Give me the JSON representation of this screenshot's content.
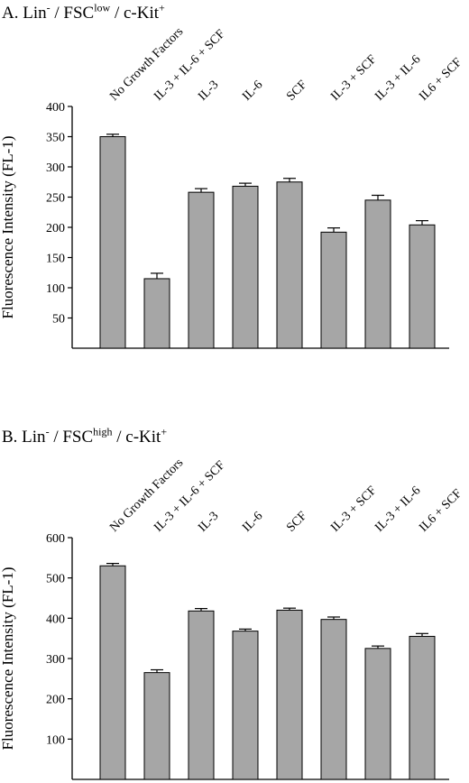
{
  "panels": [
    {
      "title_prefix": "A. Lin",
      "title_sup1": "-",
      "title_mid": " / FSC",
      "title_sup2": "low",
      "title_mid2": " / c-Kit",
      "title_sup3": "+"
    },
    {
      "title_prefix": "B. Lin",
      "title_sup1": "-",
      "title_mid": " / FSC",
      "title_sup2": "high",
      "title_mid2": " / c-Kit",
      "title_sup3": "+"
    }
  ],
  "chart_data": [
    {
      "type": "bar",
      "title": "A. Lin- / FSClow / c-Kit+",
      "ylabel": "Fluorescence Intensity (FL-1)",
      "xlabel": "",
      "ylim": [
        0,
        400
      ],
      "yticks": [
        50,
        100,
        150,
        200,
        250,
        300,
        350,
        400
      ],
      "categories": [
        "No Growth Factors",
        "IL-3 + IL-6 + SCF",
        "IL-3",
        "IL-6",
        "SCF",
        "IL-3 + SCF",
        "IL-3 + IL-6",
        "IL6 + SCF"
      ],
      "values": [
        350,
        115,
        258,
        268,
        275,
        192,
        245,
        204
      ],
      "errors": [
        4,
        9,
        6,
        5,
        6,
        7,
        8,
        7
      ],
      "bar_color": "#a6a6a6",
      "grid": false
    },
    {
      "type": "bar",
      "title": "B. Lin- / FSChigh / c-Kit+",
      "ylabel": "Fluorescence Intensity (FL-1)",
      "xlabel": "",
      "ylim": [
        0,
        600
      ],
      "yticks": [
        100,
        200,
        300,
        400,
        500,
        600
      ],
      "categories": [
        "No Growth Factors",
        "IL-3 + IL-6 + SCF",
        "IL-3",
        "IL-6",
        "SCF",
        "IL-3 + SCF",
        "IL-3 + IL-6",
        "IL6 + SCF"
      ],
      "values": [
        530,
        265,
        418,
        368,
        420,
        397,
        325,
        355
      ],
      "errors": [
        6,
        7,
        6,
        5,
        5,
        6,
        6,
        7
      ],
      "bar_color": "#a6a6a6",
      "grid": false
    }
  ]
}
